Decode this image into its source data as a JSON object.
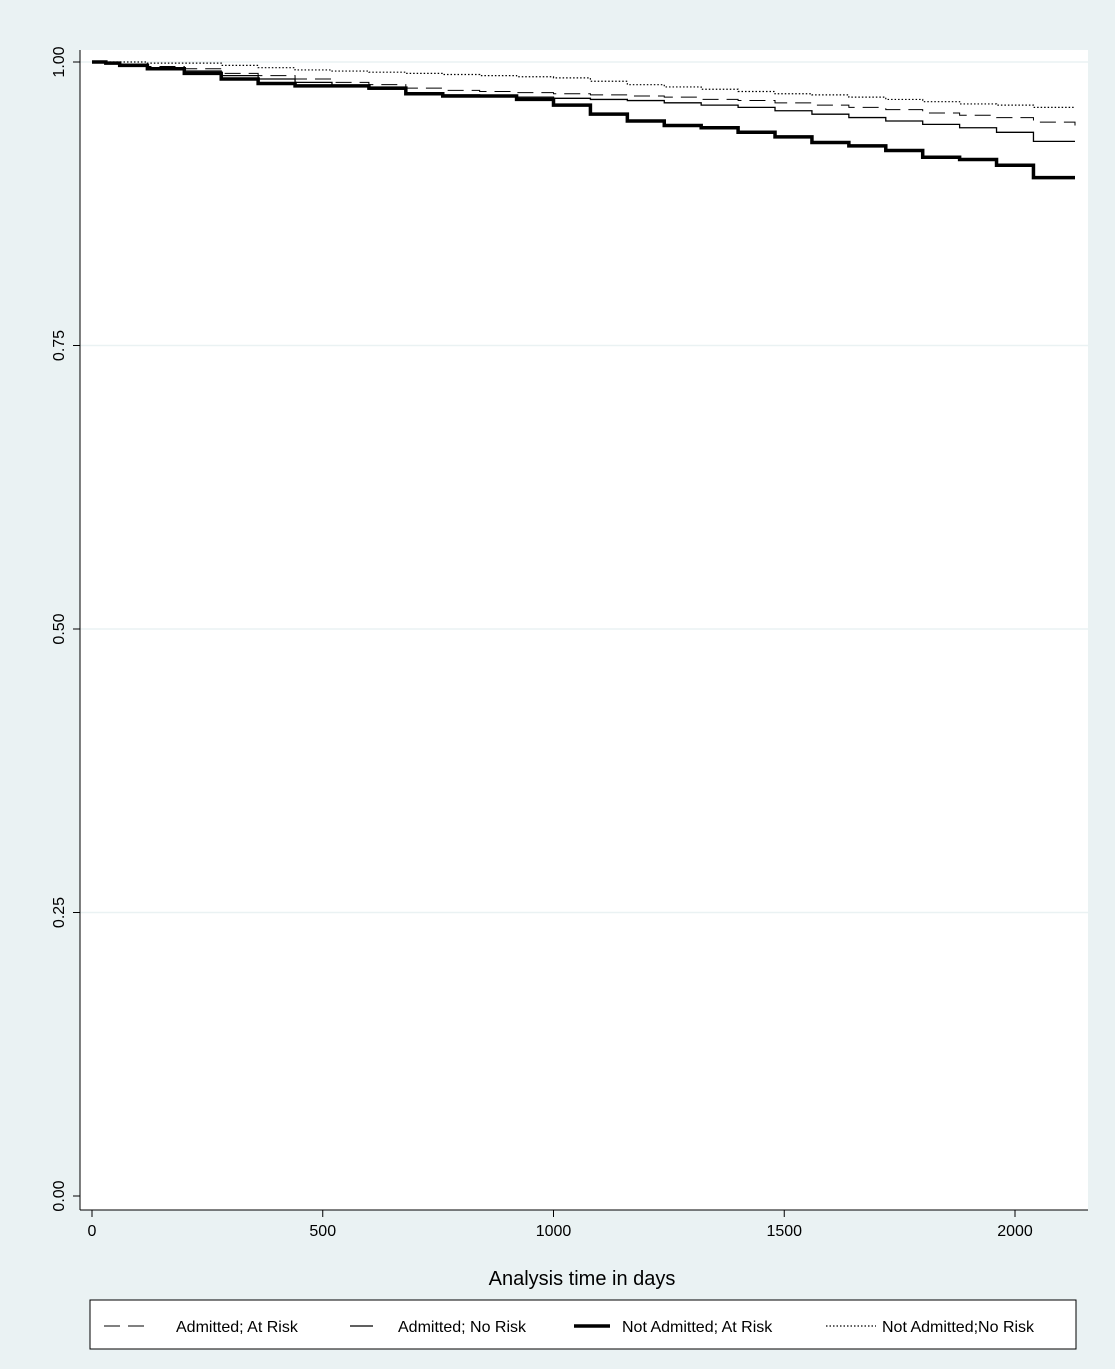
{
  "chart_data": {
    "type": "line",
    "title": "",
    "xlabel": "Analysis time in days",
    "ylabel": "",
    "xlim": [
      0,
      2150
    ],
    "ylim": [
      0,
      1.0
    ],
    "x_ticks": [
      "0",
      "500",
      "1000",
      "1500",
      "2000"
    ],
    "y_ticks": [
      "0.00",
      "0.25",
      "0.50",
      "0.75",
      "1.00"
    ],
    "grid": true,
    "legend_position": "bottom",
    "series": [
      {
        "name": "Admitted; At Risk",
        "style": "dashed",
        "x": [
          0,
          30,
          60,
          120,
          200,
          280,
          360,
          440,
          520,
          600,
          680,
          760,
          840,
          920,
          1000,
          1080,
          1160,
          1240,
          1320,
          1400,
          1480,
          1560,
          1640,
          1720,
          1800,
          1880,
          1960,
          2040,
          2130
        ],
        "y": [
          1.0,
          0.999,
          0.998,
          0.996,
          0.994,
          0.99,
          0.988,
          0.985,
          0.982,
          0.98,
          0.977,
          0.975,
          0.974,
          0.973,
          0.972,
          0.971,
          0.97,
          0.969,
          0.967,
          0.966,
          0.964,
          0.962,
          0.96,
          0.958,
          0.955,
          0.953,
          0.951,
          0.947,
          0.944
        ]
      },
      {
        "name": "Admitted; No Risk",
        "style": "solid",
        "x": [
          0,
          30,
          60,
          120,
          200,
          280,
          360,
          440,
          520,
          600,
          680,
          760,
          840,
          920,
          1000,
          1080,
          1160,
          1240,
          1320,
          1400,
          1480,
          1560,
          1640,
          1720,
          1800,
          1880,
          1960,
          2040,
          2130
        ],
        "y": [
          1.0,
          0.999,
          0.998,
          0.995,
          0.992,
          0.988,
          0.985,
          0.982,
          0.979,
          0.976,
          0.973,
          0.971,
          0.97,
          0.969,
          0.968,
          0.967,
          0.966,
          0.964,
          0.962,
          0.96,
          0.957,
          0.954,
          0.951,
          0.948,
          0.945,
          0.942,
          0.938,
          0.93,
          0.93
        ]
      },
      {
        "name": "Not Admitted; At Risk",
        "style": "thick",
        "x": [
          0,
          30,
          60,
          120,
          200,
          280,
          360,
          440,
          520,
          600,
          680,
          760,
          840,
          920,
          1000,
          1080,
          1160,
          1240,
          1320,
          1400,
          1480,
          1560,
          1640,
          1720,
          1800,
          1880,
          1960,
          2040,
          2130
        ],
        "y": [
          1.0,
          0.999,
          0.997,
          0.994,
          0.99,
          0.985,
          0.981,
          0.979,
          0.979,
          0.977,
          0.972,
          0.97,
          0.97,
          0.967,
          0.962,
          0.954,
          0.948,
          0.944,
          0.942,
          0.938,
          0.934,
          0.929,
          0.926,
          0.922,
          0.916,
          0.914,
          0.909,
          0.898,
          0.898
        ]
      },
      {
        "name": "Not Admitted;No Risk",
        "style": "dotted",
        "x": [
          0,
          30,
          60,
          120,
          200,
          280,
          360,
          440,
          520,
          600,
          680,
          760,
          840,
          920,
          1000,
          1080,
          1160,
          1240,
          1320,
          1400,
          1480,
          1560,
          1640,
          1720,
          1800,
          1880,
          1960,
          2040,
          2130
        ],
        "y": [
          1.0,
          1.0,
          1.0,
          0.999,
          0.999,
          0.997,
          0.995,
          0.993,
          0.992,
          0.991,
          0.99,
          0.989,
          0.988,
          0.987,
          0.986,
          0.983,
          0.98,
          0.978,
          0.976,
          0.974,
          0.972,
          0.971,
          0.969,
          0.967,
          0.965,
          0.963,
          0.962,
          0.96,
          0.96
        ]
      }
    ]
  }
}
